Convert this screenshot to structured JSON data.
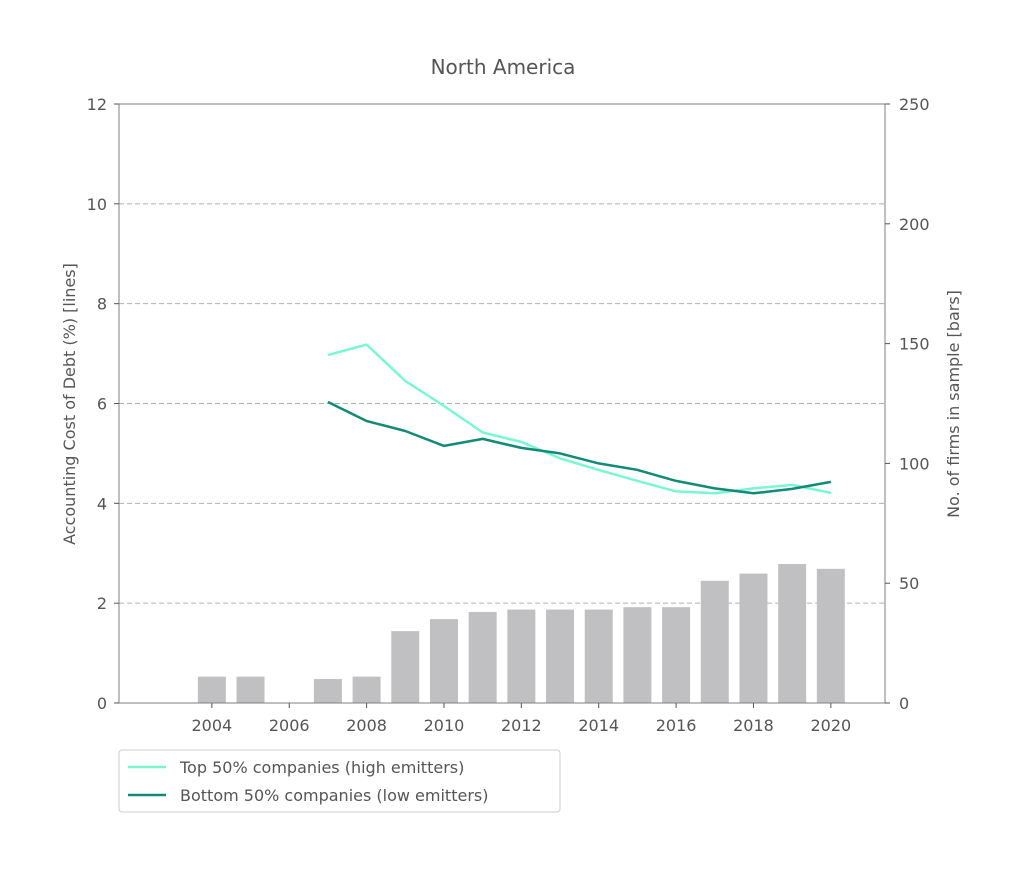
{
  "chart_data": {
    "type": "bar",
    "title": "North America",
    "ylabel_left": "Accounting Cost of Debt (%)  [lines]",
    "ylabel_right": "No. of firms in sample [bars]",
    "xlabel": "",
    "x_ticks": [
      2004,
      2006,
      2008,
      2010,
      2012,
      2014,
      2016,
      2018,
      2020
    ],
    "y_left_ticks": [
      0,
      2,
      4,
      6,
      8,
      10,
      12
    ],
    "y_right_ticks": [
      0,
      50,
      100,
      150,
      200,
      250
    ],
    "ylim_left": [
      0,
      12
    ],
    "ylim_right": [
      0,
      250
    ],
    "xlim": [
      2001.6,
      2021.4
    ],
    "grid": "horizontal dashed",
    "bars": {
      "name": "No. of firms in sample",
      "color": "#c0c0c2",
      "x": [
        2004,
        2005,
        2007,
        2008,
        2009,
        2010,
        2011,
        2012,
        2013,
        2014,
        2015,
        2016,
        2017,
        2018,
        2019,
        2020
      ],
      "values": [
        11,
        11,
        10,
        11,
        30,
        35,
        38,
        39,
        39,
        39,
        40,
        40,
        51,
        54,
        58,
        56
      ]
    },
    "series": [
      {
        "name": "Top 50% companies (high emitters)",
        "color": "#79f7d3",
        "x": [
          2007,
          2008,
          2009,
          2010,
          2011,
          2012,
          2013,
          2014,
          2015,
          2016,
          2017,
          2018,
          2019,
          2020
        ],
        "values": [
          6.97,
          7.18,
          6.45,
          5.95,
          5.42,
          5.23,
          4.9,
          4.67,
          4.45,
          4.24,
          4.2,
          4.3,
          4.37,
          4.21
        ]
      },
      {
        "name": "Bottom 50% companies (low emitters)",
        "color": "#118a76",
        "x": [
          2007,
          2008,
          2009,
          2010,
          2011,
          2012,
          2013,
          2014,
          2015,
          2016,
          2017,
          2018,
          2019,
          2020
        ],
        "values": [
          6.03,
          5.65,
          5.45,
          5.15,
          5.29,
          5.11,
          5.0,
          4.8,
          4.67,
          4.45,
          4.3,
          4.2,
          4.29,
          4.43
        ]
      }
    ],
    "legend": "lower-left outside"
  }
}
